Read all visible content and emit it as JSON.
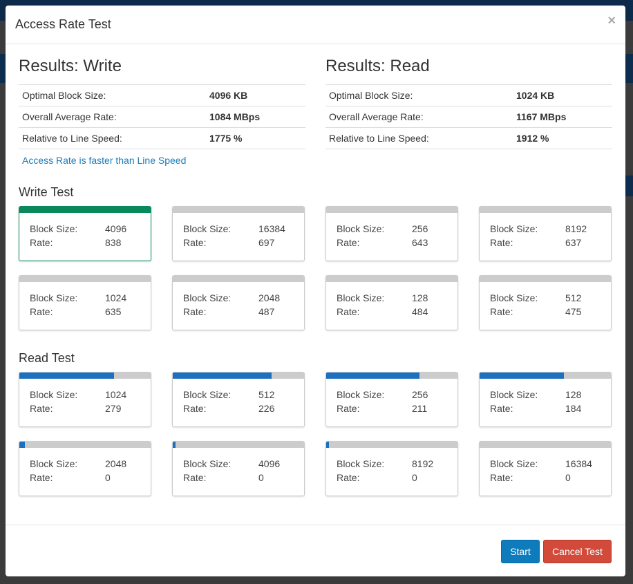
{
  "dialog": {
    "title": "Access Rate Test",
    "close_label": "×"
  },
  "results_write": {
    "title": "Results: Write",
    "rows": [
      {
        "label": "Optimal Block Size:",
        "value": "4096 KB"
      },
      {
        "label": "Overall Average Rate:",
        "value": "1084 MBps"
      },
      {
        "label": "Relative to Line Speed:",
        "value": "1775 %"
      }
    ],
    "note": "Access Rate is faster than Line Speed"
  },
  "results_read": {
    "title": "Results: Read",
    "rows": [
      {
        "label": "Optimal Block Size:",
        "value": "1024 KB"
      },
      {
        "label": "Overall Average Rate:",
        "value": "1167 MBps"
      },
      {
        "label": "Relative to Line Speed:",
        "value": "1912 %"
      }
    ]
  },
  "labels": {
    "block_size": "Block Size:",
    "rate": "Rate:"
  },
  "write_test": {
    "title": "Write Test",
    "cards": [
      {
        "block_size": "4096",
        "rate": "838",
        "progress": 1.0,
        "selected": true
      },
      {
        "block_size": "16384",
        "rate": "697",
        "progress": 0,
        "selected": false
      },
      {
        "block_size": "256",
        "rate": "643",
        "progress": 0,
        "selected": false
      },
      {
        "block_size": "8192",
        "rate": "637",
        "progress": 0,
        "selected": false
      },
      {
        "block_size": "1024",
        "rate": "635",
        "progress": 0,
        "selected": false
      },
      {
        "block_size": "2048",
        "rate": "487",
        "progress": 0,
        "selected": false
      },
      {
        "block_size": "128",
        "rate": "484",
        "progress": 0,
        "selected": false
      },
      {
        "block_size": "512",
        "rate": "475",
        "progress": 0,
        "selected": false
      }
    ]
  },
  "read_test": {
    "title": "Read Test",
    "cards": [
      {
        "block_size": "1024",
        "rate": "279",
        "progress": 0.72
      },
      {
        "block_size": "512",
        "rate": "226",
        "progress": 0.75
      },
      {
        "block_size": "256",
        "rate": "211",
        "progress": 0.71
      },
      {
        "block_size": "128",
        "rate": "184",
        "progress": 0.64
      },
      {
        "block_size": "2048",
        "rate": "0",
        "progress": 0.04
      },
      {
        "block_size": "4096",
        "rate": "0",
        "progress": 0.02
      },
      {
        "block_size": "8192",
        "rate": "0",
        "progress": 0.02
      },
      {
        "block_size": "16384",
        "rate": "0",
        "progress": 0
      }
    ]
  },
  "footer": {
    "start_label": "Start",
    "cancel_label": "Cancel Test"
  },
  "colors": {
    "selected_border": "#0a8a5c",
    "progress_fill": "#1e6fc0",
    "start_button": "#0e7bbd",
    "cancel_button": "#d24a3a",
    "note_link": "#1a7ab8"
  }
}
